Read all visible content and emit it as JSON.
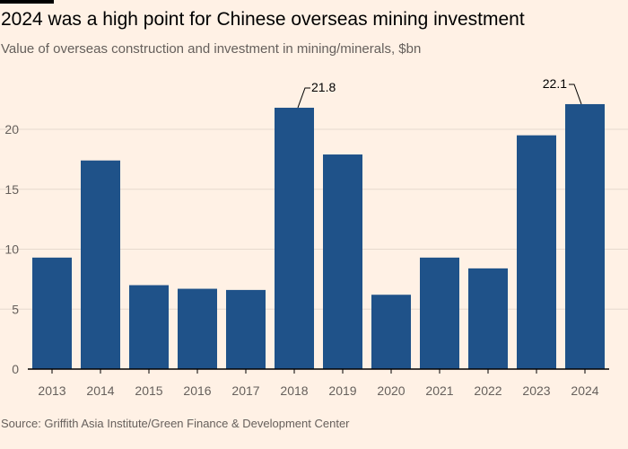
{
  "header": {
    "title": "2024 was a high point for Chinese overseas mining investment",
    "subtitle": "Value of overseas construction and investment in mining/minerals, $bn"
  },
  "footer": {
    "source": "Source: Griffith Asia Institute/Green Finance & Development Center"
  },
  "colors": {
    "bar": "#1f5289",
    "gridline": "#e6d9ce",
    "baseline": "#000000",
    "background": "#fff1e5"
  },
  "chart_data": {
    "type": "bar",
    "title": "2024 was a high point for Chinese overseas mining investment",
    "subtitle": "Value of overseas construction and investment in mining/minerals, $bn",
    "xlabel": "",
    "ylabel": "",
    "categories": [
      "2013",
      "2014",
      "2015",
      "2016",
      "2017",
      "2018",
      "2019",
      "2020",
      "2021",
      "2022",
      "2023",
      "2024"
    ],
    "values": [
      9.3,
      17.4,
      7.0,
      6.7,
      6.6,
      21.8,
      17.9,
      6.2,
      9.3,
      8.4,
      19.5,
      22.1
    ],
    "ylim": [
      0,
      22.5
    ],
    "yticks": [
      0,
      5,
      10,
      15,
      20
    ],
    "ytick_labels": [
      "0",
      "5",
      "10",
      "15",
      "20"
    ],
    "grid": true,
    "annotations": [
      {
        "category": "2018",
        "label": "21.8"
      },
      {
        "category": "2024",
        "label": "22.1"
      }
    ]
  }
}
